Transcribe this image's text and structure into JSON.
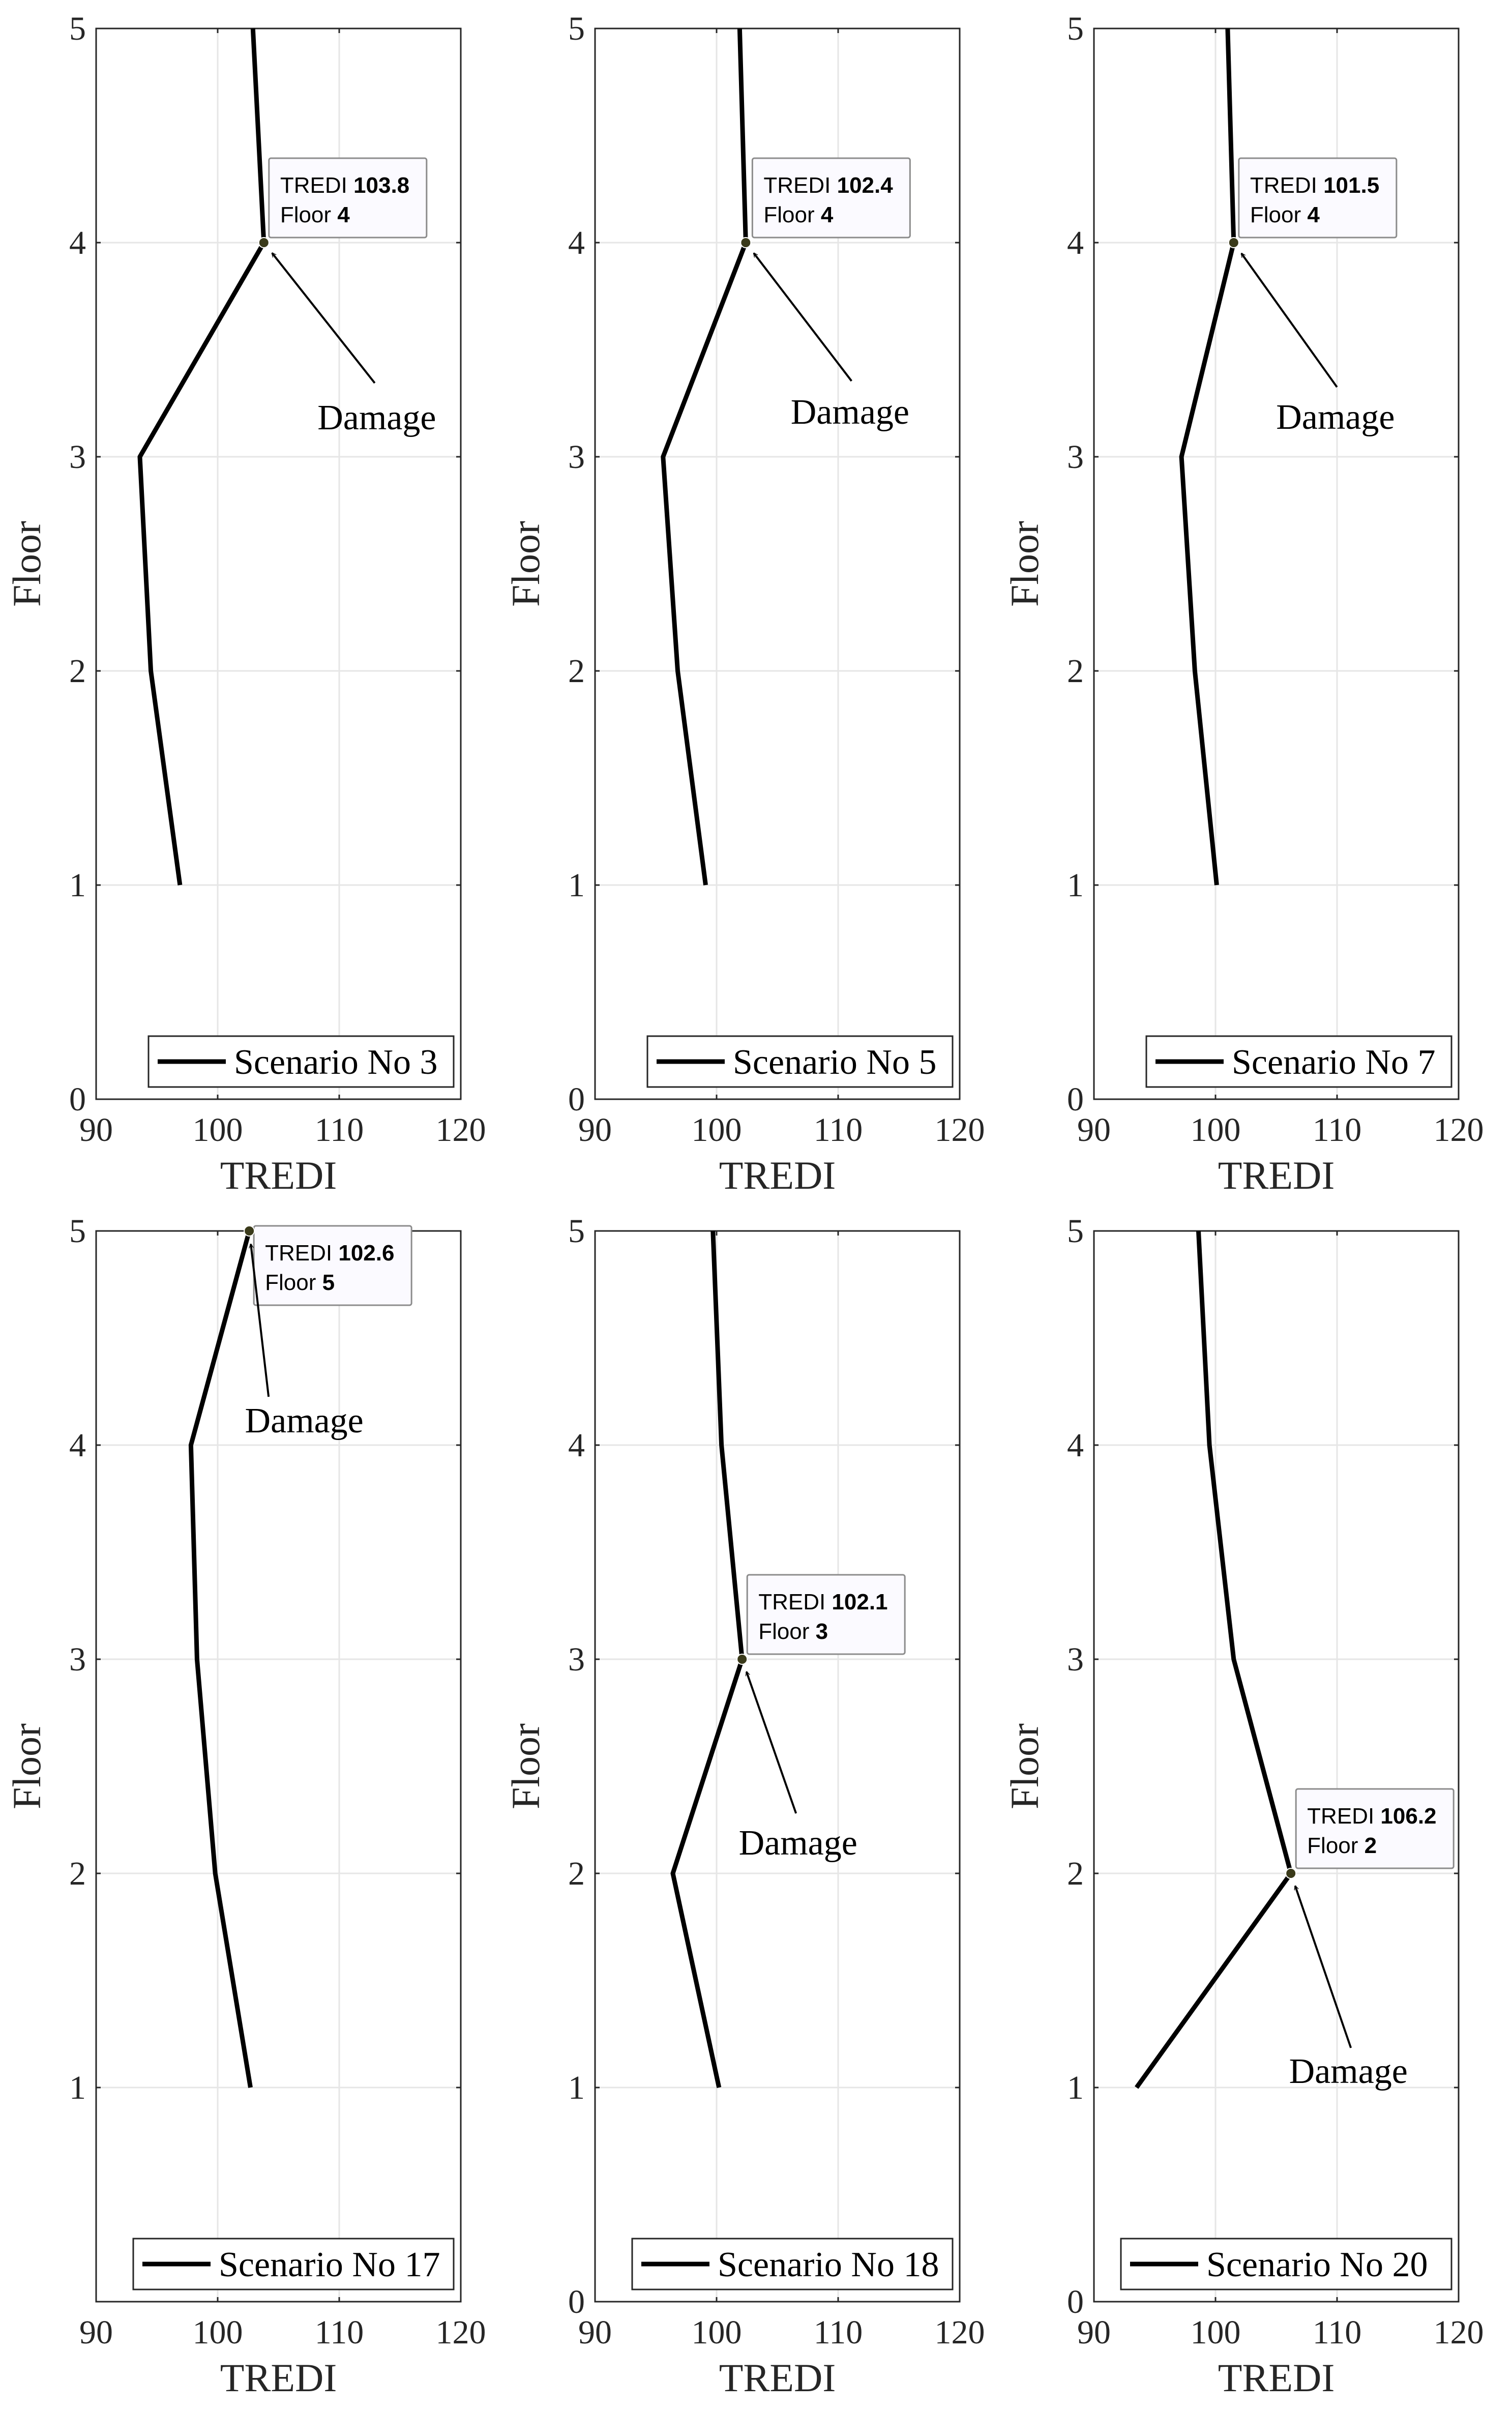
{
  "chart_data": [
    {
      "type": "line",
      "title": "",
      "xlabel": "TREDI",
      "ylabel": "Floor",
      "xlim": [
        90,
        120
      ],
      "ylim": [
        0,
        5
      ],
      "xticks": [
        "90",
        "100",
        "110",
        "120"
      ],
      "yticks": [
        "0",
        "1",
        "2",
        "3",
        "4",
        "5"
      ],
      "grid": true,
      "legend_position": "bottom-right",
      "series": [
        {
          "name": "Scenario No 3",
          "x": [
            96.9,
            94.5,
            93.6,
            103.8,
            102.9
          ],
          "y": [
            1,
            2,
            3,
            4,
            5
          ]
        }
      ],
      "datatip": {
        "x_label": "TREDI",
        "x_value": "103.8",
        "y_label": "Floor",
        "y_value": "4"
      },
      "annotation": "Damage"
    },
    {
      "type": "line",
      "title": "",
      "xlabel": "TREDI",
      "ylabel": "Floor",
      "xlim": [
        90,
        120
      ],
      "ylim": [
        0,
        5
      ],
      "xticks": [
        "90",
        "100",
        "110",
        "120"
      ],
      "yticks": [
        "0",
        "1",
        "2",
        "3",
        "4",
        "5"
      ],
      "grid": true,
      "legend_position": "bottom-right",
      "series": [
        {
          "name": "Scenario No 5",
          "x": [
            99.1,
            96.8,
            95.6,
            102.4,
            101.9
          ],
          "y": [
            1,
            2,
            3,
            4,
            5
          ]
        }
      ],
      "datatip": {
        "x_label": "TREDI",
        "x_value": "102.4",
        "y_label": "Floor",
        "y_value": "4"
      },
      "annotation": "Damage"
    },
    {
      "type": "line",
      "title": "",
      "xlabel": "TREDI",
      "ylabel": "Floor",
      "xlim": [
        90,
        120
      ],
      "ylim": [
        0,
        5
      ],
      "xticks": [
        "90",
        "100",
        "110",
        "120"
      ],
      "yticks": [
        "0",
        "1",
        "2",
        "3",
        "4",
        "5"
      ],
      "grid": true,
      "legend_position": "bottom-right",
      "series": [
        {
          "name": "Scenario No 7",
          "x": [
            100.1,
            98.3,
            97.2,
            101.5,
            101.0
          ],
          "y": [
            1,
            2,
            3,
            4,
            5
          ]
        }
      ],
      "datatip": {
        "x_label": "TREDI",
        "x_value": "101.5",
        "y_label": "Floor",
        "y_value": "4"
      },
      "annotation": "Damage"
    },
    {
      "type": "line",
      "title": "",
      "xlabel": "TREDI",
      "ylabel": "Floor",
      "xlim": [
        90,
        120
      ],
      "ylim": [
        0,
        5
      ],
      "xticks": [
        "90",
        "100",
        "110",
        "120"
      ],
      "yticks": [
        "1",
        "2",
        "3",
        "4",
        "5"
      ],
      "grid": true,
      "legend_position": "bottom-right",
      "series": [
        {
          "name": "Scenario No 17",
          "x": [
            102.7,
            99.8,
            98.3,
            97.8,
            102.6
          ],
          "y": [
            1,
            2,
            3,
            4,
            5
          ]
        }
      ],
      "datatip": {
        "x_label": "TREDI",
        "x_value": "102.6",
        "y_label": "Floor",
        "y_value": "5"
      },
      "annotation": "Damage"
    },
    {
      "type": "line",
      "title": "",
      "xlabel": "TREDI",
      "ylabel": "Floor",
      "xlim": [
        90,
        120
      ],
      "ylim": [
        0,
        5
      ],
      "xticks": [
        "90",
        "100",
        "110",
        "120"
      ],
      "yticks": [
        "0",
        "1",
        "2",
        "3",
        "4",
        "5"
      ],
      "grid": true,
      "legend_position": "bottom-right",
      "series": [
        {
          "name": "Scenario No 18",
          "x": [
            100.2,
            96.4,
            102.1,
            100.4,
            99.7
          ],
          "y": [
            1,
            2,
            3,
            4,
            5
          ]
        }
      ],
      "datatip": {
        "x_label": "TREDI",
        "x_value": "102.1",
        "y_label": "Floor",
        "y_value": "3"
      },
      "annotation": "Damage"
    },
    {
      "type": "line",
      "title": "",
      "xlabel": "TREDI",
      "ylabel": "Floor",
      "xlim": [
        90,
        120
      ],
      "ylim": [
        0,
        5
      ],
      "xticks": [
        "90",
        "100",
        "110",
        "120"
      ],
      "yticks": [
        "0",
        "1",
        "2",
        "3",
        "4",
        "5"
      ],
      "grid": true,
      "legend_position": "bottom-right",
      "series": [
        {
          "name": "Scenario No 20",
          "x": [
            93.5,
            106.2,
            101.5,
            99.5,
            98.6
          ],
          "y": [
            1,
            2,
            3,
            4,
            5
          ]
        }
      ],
      "datatip": {
        "x_label": "TREDI",
        "x_value": "106.2",
        "y_label": "Floor",
        "y_value": "2"
      },
      "annotation": "Damage"
    }
  ]
}
